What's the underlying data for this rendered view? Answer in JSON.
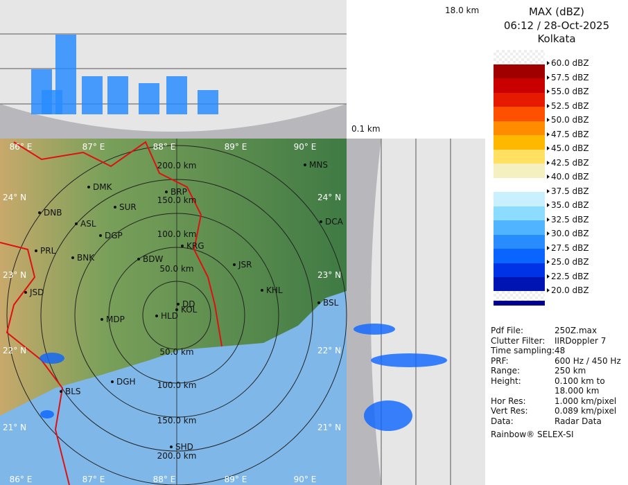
{
  "header": {
    "product": "MAX (dBZ)",
    "datetime": "06:12 / 28-Oct-2025",
    "station": "Kolkata"
  },
  "cross_section_scale": {
    "top_height": "18.0 km",
    "bottom_height": "0.1 km"
  },
  "legend": [
    {
      "label": "60.0 dBZ",
      "color": "checker"
    },
    {
      "label": "57.5 dBZ",
      "color": "#a00000"
    },
    {
      "label": "55.0 dBZ",
      "color": "#c80000"
    },
    {
      "label": "52.5 dBZ",
      "color": "#e61a00"
    },
    {
      "label": "50.0 dBZ",
      "color": "#ff5000"
    },
    {
      "label": "47.5 dBZ",
      "color": "#ff8c00"
    },
    {
      "label": "45.0 dBZ",
      "color": "#ffb800"
    },
    {
      "label": "42.5 dBZ",
      "color": "#ffe060"
    },
    {
      "label": "40.0 dBZ",
      "color": "#f5f0c0"
    },
    {
      "label": "37.5 dBZ",
      "color": "#ffffff"
    },
    {
      "label": "35.0 dBZ",
      "color": "#c8f0ff"
    },
    {
      "label": "32.5 dBZ",
      "color": "#8cdcff"
    },
    {
      "label": "30.0 dBZ",
      "color": "#50b4ff"
    },
    {
      "label": "27.5 dBZ",
      "color": "#288cff"
    },
    {
      "label": "25.0 dBZ",
      "color": "#0a64ff"
    },
    {
      "label": "22.5 dBZ",
      "color": "#0032e6"
    },
    {
      "label": "20.0 dBZ",
      "color": "#0014b4"
    },
    {
      "label": "",
      "color": "#00008c"
    }
  ],
  "metadata": [
    {
      "key": "Pdf File:",
      "value": "250Z.max"
    },
    {
      "key": "Clutter Filter:",
      "value": "IIRDoppler 7"
    },
    {
      "key": "Time sampling:",
      "value": "48"
    },
    {
      "key": "PRF:",
      "value": "600 Hz / 450 Hz"
    },
    {
      "key": "Range:",
      "value": "250 km"
    },
    {
      "key": "Height:",
      "value": "0.100 km to"
    },
    {
      "key": "",
      "value": "18.000 km"
    },
    {
      "key": "Hor Res:",
      "value": "1.000 km/pixel"
    },
    {
      "key": "Vert Res:",
      "value": "0.089 km/pixel"
    },
    {
      "key": "Data:",
      "value": "Radar Data"
    }
  ],
  "footer": "Rainbow® SELEX-SI",
  "map": {
    "range_rings": [
      "50.0 km",
      "100.0 km",
      "150.0 km",
      "200.0 km"
    ],
    "range_rings_south": [
      "50.0 km",
      "100.0 km",
      "150.0 km",
      "200.0 km"
    ],
    "lon_labels_top": [
      "86° E",
      "87° E",
      "88° E",
      "89° E",
      "90° E"
    ],
    "lon_labels_bottom": [
      "86° E",
      "87° E",
      "88° E",
      "89° E",
      "90° E"
    ],
    "lat_labels_left": [
      "24° N",
      "23° N",
      "22° N",
      "21° N"
    ],
    "lat_labels_right": [
      "24° N",
      "23° N",
      "22° N",
      "21° N"
    ],
    "cities": [
      "MNS",
      "DMK",
      "BRP",
      "DNB",
      "SUR",
      "ASL",
      "DCA",
      "DGP",
      "KRG",
      "PRL",
      "BNK",
      "BDW",
      "JSR",
      "KHL",
      "JSD",
      "DD",
      "BSL",
      "MDP",
      "KOL",
      "HLD",
      "DGH",
      "BLS",
      "SHD"
    ]
  }
}
